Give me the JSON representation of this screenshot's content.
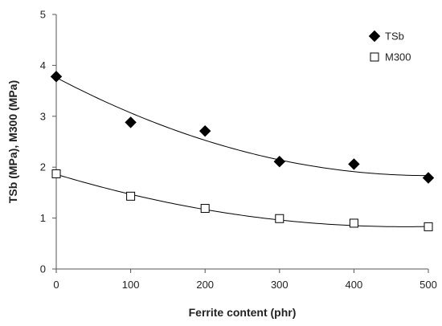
{
  "chart_data": {
    "type": "scatter",
    "title": "",
    "xlabel": "Ferrite content (phr)",
    "ylabel": "TSb (MPa), M300 (MPa)",
    "xlim": [
      0,
      500
    ],
    "ylim": [
      0,
      5
    ],
    "x_ticks": [
      0,
      100,
      200,
      300,
      400,
      500
    ],
    "y_ticks": [
      0,
      1,
      2,
      3,
      4,
      5
    ],
    "grid": false,
    "legend_position": "top-right",
    "series": [
      {
        "name": "TSb",
        "marker": "filled-diamond",
        "color": "#000000",
        "x": [
          0,
          100,
          200,
          300,
          400,
          500
        ],
        "y": [
          3.78,
          2.88,
          2.71,
          2.11,
          2.06,
          1.79
        ],
        "trend_coeffs": [
          3.76,
          -0.0077,
          7.7e-06
        ]
      },
      {
        "name": "M300",
        "marker": "open-square",
        "color": "#000000",
        "x": [
          0,
          100,
          200,
          300,
          400,
          500
        ],
        "y": [
          1.87,
          1.43,
          1.19,
          0.99,
          0.9,
          0.83
        ],
        "trend_coeffs": [
          1.86,
          -0.0044,
          4.7e-06
        ]
      }
    ]
  }
}
